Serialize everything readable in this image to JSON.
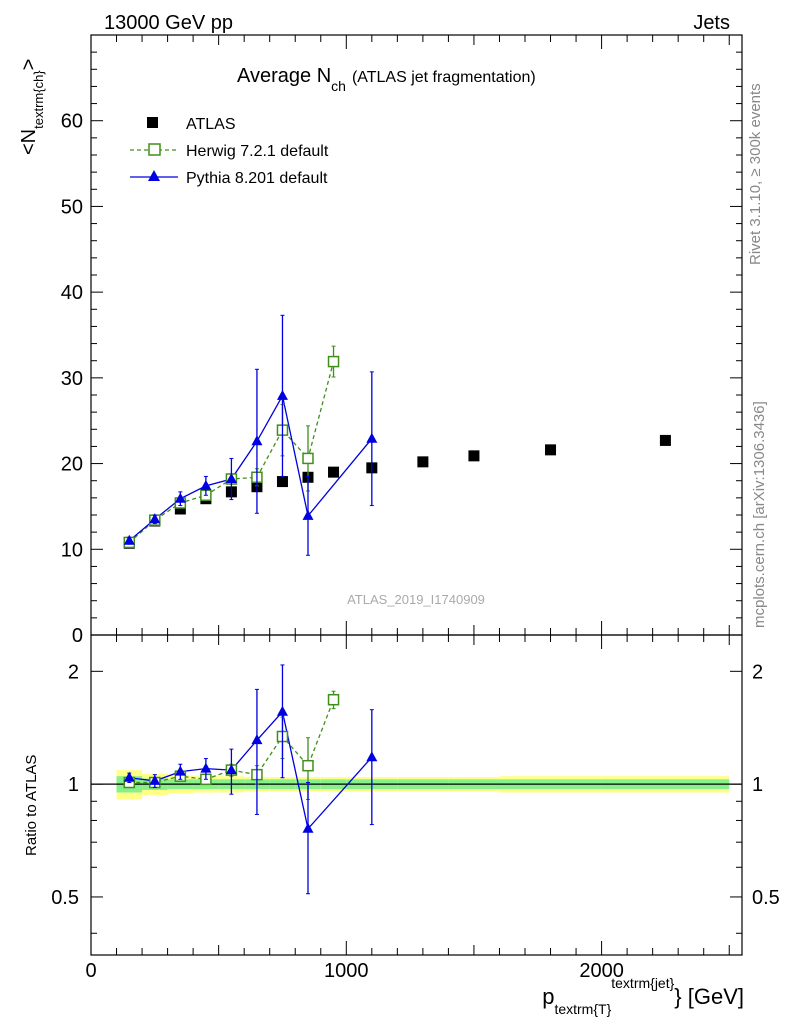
{
  "header": {
    "left": "13000 GeV pp",
    "right": "Jets",
    "side_top": "Rivet 3.1.10, ≥ 300k events",
    "side_bottom": "mcplots.cern.ch [arXiv:1306.3436]"
  },
  "chart_data": [
    {
      "type": "scatter",
      "title_main": "Average N",
      "title_sub": "ch",
      "title_note": "(ATLAS jet fragmentation)",
      "watermark": "ATLAS_2019_I1740909",
      "ylabel_main": "<N",
      "ylabel_sub": "textrm{ch}",
      "ylabel_close": ">",
      "xlim": [
        0,
        2550
      ],
      "ylim": [
        0,
        70
      ],
      "y_ticks": [
        0,
        10,
        20,
        30,
        40,
        50,
        60
      ],
      "legend_position": "top-left",
      "series": [
        {
          "name": "ATLAS",
          "color": "#000000",
          "marker": "square-filled",
          "x": [
            150,
            250,
            350,
            450,
            550,
            650,
            750,
            850,
            950,
            1100,
            1300,
            1500,
            1800,
            2250
          ],
          "y": [
            10.7,
            13.3,
            14.7,
            15.9,
            16.7,
            17.3,
            17.9,
            18.4,
            19.0,
            19.5,
            20.2,
            20.9,
            21.6,
            22.7
          ]
        },
        {
          "name": "Herwig 7.2.1 default",
          "color": "#3f8f1c",
          "marker": "square-open",
          "line": "dashed",
          "x": [
            150,
            250,
            350,
            450,
            550,
            650,
            750,
            850,
            950
          ],
          "y": [
            10.8,
            13.4,
            15.4,
            16.3,
            18.2,
            18.4,
            23.9,
            20.6,
            31.9
          ],
          "err": [
            0.3,
            0.3,
            0.4,
            0.4,
            0.6,
            1.0,
            3.0,
            3.8,
            1.8
          ]
        },
        {
          "name": "Pythia 8.201 default",
          "color": "#0000e0",
          "marker": "triangle-filled",
          "line": "solid",
          "x": [
            150,
            250,
            350,
            450,
            550,
            650,
            750,
            850,
            1100
          ],
          "y": [
            11.0,
            13.5,
            15.9,
            17.4,
            18.2,
            22.6,
            27.9,
            13.9,
            22.9
          ],
          "err": [
            0.4,
            0.5,
            0.8,
            1.1,
            2.4,
            8.4,
            9.4,
            4.6,
            7.8
          ]
        }
      ]
    },
    {
      "type": "scatter",
      "ylabel": "Ratio to ATLAS",
      "y_scale": "log",
      "ylim": [
        0.35,
        2.5
      ],
      "y_ticks": [
        "0.5",
        "1",
        "2"
      ],
      "xlabel_main": "p",
      "xlabel_sub": "textrm{T}",
      "xlabel_sup": "textrm{jet}",
      "xlabel_unit": "} [GeV]",
      "x_ticks": [
        "0",
        "1000",
        "2000"
      ],
      "band_edges": [
        100,
        200,
        300,
        400,
        500,
        600,
        700,
        800,
        900,
        1000,
        1200,
        1400,
        1600,
        2000,
        2500
      ],
      "band_stat": [
        0.05,
        0.035,
        0.03,
        0.03,
        0.03,
        0.03,
        0.03,
        0.03,
        0.03,
        0.03,
        0.03,
        0.03,
        0.03,
        0.03
      ],
      "band_total": [
        0.09,
        0.065,
        0.055,
        0.05,
        0.05,
        0.045,
        0.045,
        0.045,
        0.045,
        0.045,
        0.045,
        0.045,
        0.05,
        0.05
      ],
      "series": [
        {
          "name": "Herwig 7.2.1 default",
          "x": [
            150,
            250,
            350,
            450,
            550,
            650,
            750,
            850,
            950
          ],
          "y": [
            1.01,
            1.01,
            1.05,
            1.03,
            1.09,
            1.06,
            1.34,
            1.12,
            1.68
          ],
          "err": [
            0.03,
            0.03,
            0.03,
            0.03,
            0.04,
            0.06,
            0.17,
            0.21,
            0.09
          ]
        },
        {
          "name": "Pythia 8.201 default",
          "x": [
            150,
            250,
            350,
            450,
            550,
            650,
            750,
            850,
            1100
          ],
          "y": [
            1.04,
            1.02,
            1.08,
            1.1,
            1.09,
            1.31,
            1.56,
            0.76,
            1.18
          ],
          "err": [
            0.03,
            0.04,
            0.05,
            0.07,
            0.15,
            0.48,
            0.52,
            0.25,
            0.4
          ]
        }
      ]
    }
  ]
}
